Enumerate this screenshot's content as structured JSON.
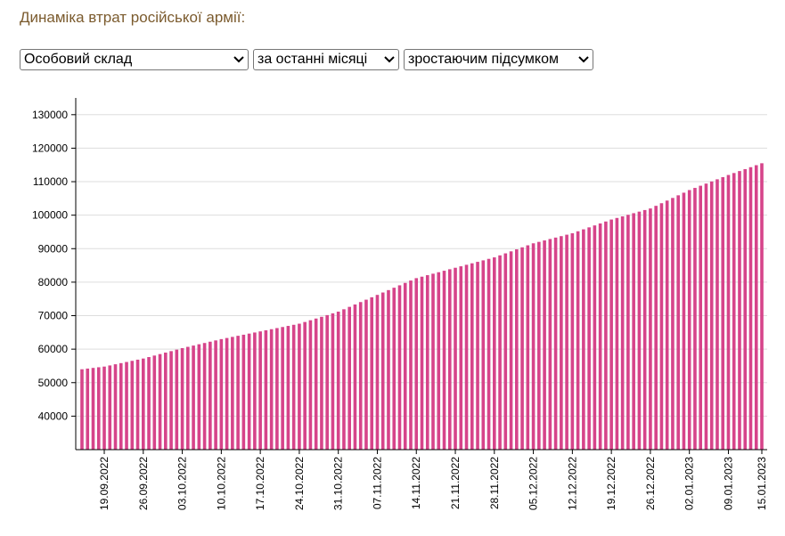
{
  "header": {
    "title": "Динаміка втрат російської армії:"
  },
  "controls": [
    "Особовий склад",
    "за останні місяці",
    "зростаючим підсумком"
  ],
  "chart_data": {
    "type": "bar",
    "color": "#d6448a",
    "grid": true,
    "categories": [
      null,
      null,
      null,
      null,
      "19.09.2022",
      null,
      null,
      null,
      null,
      null,
      null,
      "26.09.2022",
      null,
      null,
      null,
      null,
      null,
      null,
      "03.10.2022",
      null,
      null,
      null,
      null,
      null,
      null,
      "10.10.2022",
      null,
      null,
      null,
      null,
      null,
      null,
      "17.10.2022",
      null,
      null,
      null,
      null,
      null,
      null,
      "24.10.2022",
      null,
      null,
      null,
      null,
      null,
      null,
      "31.10.2022",
      null,
      null,
      null,
      null,
      null,
      null,
      "07.11.2022",
      null,
      null,
      null,
      null,
      null,
      null,
      "14.11.2022",
      null,
      null,
      null,
      null,
      null,
      null,
      "21.11.2022",
      null,
      null,
      null,
      null,
      null,
      null,
      "28.11.2022",
      null,
      null,
      null,
      null,
      null,
      null,
      "05.12.2022",
      null,
      null,
      null,
      null,
      null,
      null,
      "12.12.2022",
      null,
      null,
      null,
      null,
      null,
      null,
      "19.12.2022",
      null,
      null,
      null,
      null,
      null,
      null,
      "26.12.2022",
      null,
      null,
      null,
      null,
      null,
      null,
      "02.01.2023",
      null,
      null,
      null,
      null,
      null,
      null,
      "09.01.2023",
      null,
      null,
      null,
      null,
      null,
      "15.01.2023"
    ],
    "values": [
      54000,
      54200,
      54400,
      54600,
      54800,
      55140,
      55490,
      55830,
      56170,
      56510,
      56860,
      57200,
      57640,
      58090,
      58530,
      58970,
      59410,
      59860,
      60300,
      60690,
      61070,
      61460,
      61840,
      62230,
      62610,
      63000,
      63330,
      63660,
      63990,
      64310,
      64640,
      64970,
      65300,
      65630,
      65960,
      66290,
      66610,
      66940,
      67270,
      67600,
      68110,
      68630,
      69140,
      69660,
      70170,
      70690,
      71200,
      71910,
      72630,
      73340,
      74060,
      74770,
      75490,
      76200,
      76910,
      77630,
      78340,
      79060,
      79770,
      80490,
      81200,
      81640,
      82090,
      82530,
      82970,
      83410,
      83860,
      84300,
      84740,
      85190,
      85630,
      86070,
      86510,
      86960,
      87400,
      88000,
      88600,
      89200,
      89800,
      90400,
      91000,
      91600,
      92030,
      92460,
      92890,
      93310,
      93740,
      94170,
      94600,
      95190,
      95770,
      96360,
      96940,
      97530,
      98110,
      98700,
      99170,
      99640,
      100110,
      100590,
      101060,
      101530,
      102000,
      102790,
      103570,
      104360,
      105140,
      105930,
      106710,
      107500,
      108140,
      108790,
      109430,
      110070,
      110710,
      111360,
      112000,
      112580,
      113170,
      113750,
      114330,
      114920,
      115500
    ],
    "ylim": [
      30000,
      135000
    ],
    "yticks": [
      40000,
      50000,
      60000,
      70000,
      80000,
      90000,
      100000,
      110000,
      120000,
      130000
    ]
  }
}
